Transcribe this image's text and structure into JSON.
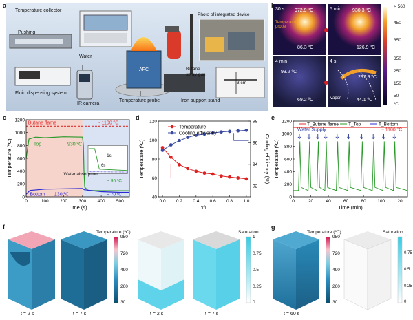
{
  "panel_letters": [
    "a",
    "b",
    "c",
    "d",
    "e",
    "f",
    "g"
  ],
  "a": {
    "labels": {
      "collector": "Temperature collector",
      "pushing": "Pushing",
      "water": "Water",
      "photo": "Photo of integrated device",
      "butane": "Butane",
      "spray": "spray gun",
      "afc": "AFC",
      "fds": "Fluid dispensing system",
      "ir": "IR camera",
      "probe": "Temperature probe",
      "stand": "Iron support stand",
      "cm": "3 cm"
    }
  },
  "b": {
    "cells": [
      {
        "time": "30 s",
        "tmax": "972.9 ºC",
        "tmin": "86.3 ºC",
        "note": "Temperature probe"
      },
      {
        "time": "5 min",
        "tmax": "930.3 ºC",
        "tmin": "126.9 ºC"
      },
      {
        "time": "4 min",
        "tmax": "93.2 ºC",
        "tmin": "69.2 ºC"
      },
      {
        "time": "4 s",
        "tmax": "297.9 ºC",
        "tmin": "44.1 ºC",
        "note": "vapor"
      }
    ],
    "scale_top": "> 560",
    "scale_top_ticks": [
      "450",
      "350"
    ],
    "scale_bottom_ticks": [
      "350",
      "250",
      "150",
      "50"
    ],
    "scale_bottom_extra": "50",
    "unit": "ºC"
  },
  "chart_data": [
    {
      "panel": "c",
      "type": "line",
      "xlabel": "Time (s)",
      "ylabel": "Temperature (ºC)",
      "xlim": [
        0,
        550
      ],
      "ylim": [
        0,
        1200
      ],
      "xticks": [
        0,
        100,
        200,
        300,
        400,
        500
      ],
      "yticks": [
        0,
        200,
        400,
        600,
        800,
        1000,
        1200
      ],
      "annotations": [
        "Butane flame",
        "~ 1100 ºC",
        "Top",
        "930 ºC",
        "~ 95 ºC",
        "Water absorption",
        "Bottom",
        "130 ºC",
        "~ 70 ºC",
        "1s",
        "6s"
      ],
      "series": [
        {
          "name": "Butane flame",
          "color": "#e03030",
          "x": [
            0,
            100,
            200,
            300,
            350,
            450,
            550
          ],
          "y": [
            1100,
            1100,
            1100,
            1100,
            1100,
            1100,
            1100
          ]
        },
        {
          "name": "Top",
          "color": "#2a9a2a",
          "x": [
            0,
            15,
            50,
            100,
            200,
            300,
            305,
            308,
            312,
            330,
            400,
            500,
            550
          ],
          "y": [
            600,
            900,
            930,
            920,
            935,
            930,
            800,
            400,
            150,
            100,
            95,
            95,
            95
          ]
        },
        {
          "name": "Bottom",
          "color": "#2a2ad0",
          "x": [
            0,
            20,
            100,
            200,
            300,
            310,
            400,
            500,
            550
          ],
          "y": [
            40,
            100,
            120,
            125,
            130,
            110,
            80,
            70,
            70
          ]
        }
      ]
    },
    {
      "panel": "d",
      "type": "line",
      "xlabel": "x/L",
      "ylabel": "Temperature (ºC)",
      "y2label": "Cooling efficiency (%)",
      "xlim": [
        -0.05,
        1.05
      ],
      "ylim": [
        40,
        120
      ],
      "y2lim": [
        91,
        98
      ],
      "xticks": [
        "0.0",
        "0.2",
        "0.4",
        "0.6",
        "0.8",
        "1.0"
      ],
      "yticks": [
        "40",
        "60",
        "80",
        "100",
        "120"
      ],
      "y2ticks": [
        "92",
        "94",
        "96",
        "98"
      ],
      "series": [
        {
          "name": "Temperature",
          "color": "#e02020",
          "axis": "left",
          "x": [
            0,
            0.1,
            0.2,
            0.3,
            0.4,
            0.5,
            0.6,
            0.7,
            0.8,
            0.9,
            1.0
          ],
          "y": [
            92,
            82,
            74,
            70,
            67,
            65,
            64,
            62,
            61,
            60,
            59
          ]
        },
        {
          "name": "Cooling efficiency",
          "color": "#3a4aa0",
          "axis": "right",
          "x": [
            0,
            0.1,
            0.2,
            0.3,
            0.4,
            0.5,
            0.6,
            0.7,
            0.8,
            0.9,
            1.0
          ],
          "y": [
            95.3,
            95.8,
            96.2,
            96.5,
            96.7,
            96.8,
            96.9,
            97.0,
            97.05,
            97.1,
            97.15
          ]
        }
      ]
    },
    {
      "panel": "e",
      "type": "line",
      "xlabel": "Time (min)",
      "ylabel": "Temperature (ºC)",
      "xlim": [
        0,
        130
      ],
      "ylim": [
        0,
        1200
      ],
      "xticks": [
        0,
        20,
        40,
        60,
        80,
        100,
        120
      ],
      "yticks": [
        0,
        200,
        400,
        600,
        800,
        1000,
        1200
      ],
      "annotations": [
        "Water Supply",
        "~ 1100 ºC"
      ],
      "legend": [
        "T_Butane flame",
        "T_Top",
        "T_Bottom"
      ],
      "series": [
        {
          "name": "T Butane flame",
          "color": "#e03030"
        },
        {
          "name": "T Top",
          "color": "#2a9a2a"
        },
        {
          "name": "T Bottom",
          "color": "#2a2ad0"
        }
      ],
      "pulse_times": [
        7,
        18,
        28,
        37,
        50,
        63,
        78,
        91,
        103,
        115
      ]
    }
  ],
  "f": {
    "temp_title": "Temperature (ºC)",
    "sat_title": "Saturation",
    "temp_ticks": [
      "950",
      "720",
      "490",
      "260",
      "30"
    ],
    "sat_ticks": [
      "1",
      "0.75",
      "0.5",
      "0.25",
      "0"
    ],
    "captions": [
      "t = 2 s",
      "t = 7 s",
      "t = 2 s",
      "t = 7 s"
    ]
  },
  "g": {
    "temp_title": "Temperature (ºC)",
    "sat_title": "Saturation",
    "temp_ticks": [
      "950",
      "720",
      "490",
      "260",
      "30"
    ],
    "sat_ticks": [
      "1",
      "0.75",
      "0.5",
      "0.25",
      "0"
    ],
    "caption": "t = 60 s"
  }
}
